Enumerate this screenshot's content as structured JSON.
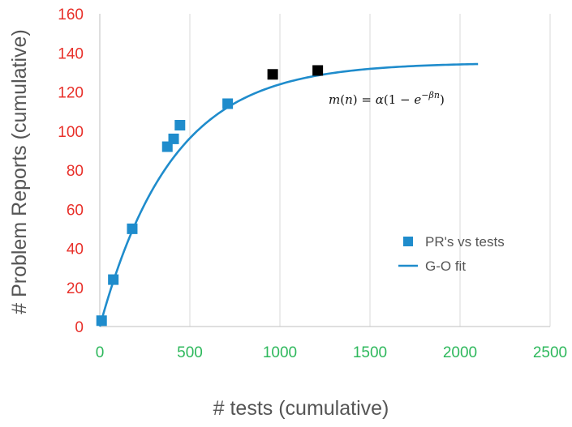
{
  "chart_data": {
    "type": "scatter",
    "title": "",
    "xlabel": "# tests (cumulative)",
    "ylabel": "# Problem Reports (cumulative)",
    "xlim": [
      0,
      2500
    ],
    "ylim": [
      0,
      160
    ],
    "x_ticks": [
      0,
      500,
      1000,
      1500,
      2000,
      2500
    ],
    "y_ticks": [
      0,
      20,
      40,
      60,
      80,
      100,
      120,
      140,
      160
    ],
    "grid": "vertical",
    "legend_position": "right",
    "colors": {
      "points": "#1f8ccc",
      "highlighted_points": "#000000",
      "fit": "#1f8ccc",
      "y_ticks": "#e8302a",
      "x_ticks": "#2eb85c",
      "grid": "#d9d9d9",
      "axis": "#bfbfbf"
    },
    "series": [
      {
        "name": "PR's vs tests",
        "kind": "scatter",
        "points": [
          {
            "x": 10,
            "y": 3,
            "highlight": false
          },
          {
            "x": 75,
            "y": 24,
            "highlight": false
          },
          {
            "x": 180,
            "y": 50,
            "highlight": false
          },
          {
            "x": 375,
            "y": 92,
            "highlight": false
          },
          {
            "x": 410,
            "y": 96,
            "highlight": false
          },
          {
            "x": 445,
            "y": 103,
            "highlight": false
          },
          {
            "x": 710,
            "y": 114,
            "highlight": false
          },
          {
            "x": 960,
            "y": 129,
            "highlight": true
          },
          {
            "x": 1210,
            "y": 131,
            "highlight": true
          }
        ]
      },
      {
        "name": "G-O fit",
        "kind": "line",
        "model": {
          "alpha": 135,
          "beta": 0.0025,
          "x_start": 0,
          "x_end": 2100
        }
      }
    ],
    "annotation": "m(n) = α(1 − e^{−βn})"
  }
}
